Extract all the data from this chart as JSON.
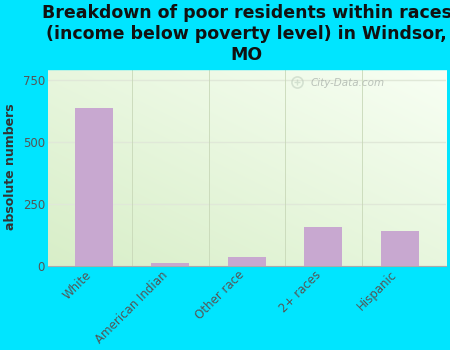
{
  "categories": [
    "White",
    "American Indian",
    "Other race",
    "2+ races",
    "Hispanic"
  ],
  "values": [
    640,
    10,
    35,
    155,
    140
  ],
  "bar_color": "#c8a8d0",
  "title": "Breakdown of poor residents within races\n(income below poverty level) in Windsor,\nMO",
  "ylabel": "absolute numbers",
  "yticks": [
    0,
    250,
    500,
    750
  ],
  "ylim": [
    0,
    800
  ],
  "background_color": "#00e5ff",
  "watermark": "City-Data.com",
  "title_fontsize": 12.5,
  "ylabel_fontsize": 9,
  "tick_fontsize": 8.5,
  "gradient_colors": [
    "#d8eec8",
    "#f8fff4"
  ],
  "grid_color": "#e0e8d8",
  "divider_color": "#c8d8b8"
}
